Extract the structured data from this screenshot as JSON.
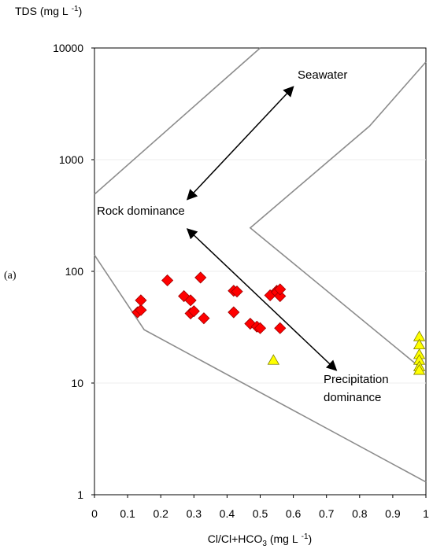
{
  "panel_label": "(a)",
  "chart_data": {
    "type": "scatter",
    "ylabel": "TDS (mg L -1)",
    "xlabel": "Cl/Cl+HCO3 (mg L -1)",
    "xlim": [
      0,
      1
    ],
    "ylim": [
      1,
      10000
    ],
    "y_scale": "log",
    "grid": true,
    "x_ticks": [
      "0",
      "0.1",
      "0.2",
      "0.3",
      "0.4",
      "0.5",
      "0.6",
      "0.7",
      "0.8",
      "0.9",
      "1"
    ],
    "y_ticks": [
      "1",
      "10",
      "100",
      "1000",
      "10000"
    ],
    "annotations": {
      "seawater": "Seawater",
      "rock": "Rock dominance",
      "precip_1": "Precipitation",
      "precip_2": "dominance"
    },
    "boundary_lines": [
      {
        "points": [
          [
            0,
            490
          ],
          [
            0.5,
            10000
          ]
        ]
      },
      {
        "points": [
          [
            0,
            140
          ],
          [
            0.15,
            30
          ],
          [
            1,
            1.3
          ]
        ]
      },
      {
        "points": [
          [
            1,
            7500
          ],
          [
            0.83,
            2000
          ],
          [
            0.47,
            245
          ],
          [
            0.98,
            14
          ]
        ]
      }
    ],
    "arrows": [
      {
        "from": [
          0.28,
          440
        ],
        "to": [
          0.6,
          4500
        ]
      },
      {
        "from": [
          0.28,
          240
        ],
        "to": [
          0.73,
          13
        ]
      }
    ],
    "series": [
      {
        "marker": "diamond",
        "color": "#ff0000",
        "points": [
          [
            0.13,
            43
          ],
          [
            0.14,
            45
          ],
          [
            0.14,
            55
          ],
          [
            0.22,
            83
          ],
          [
            0.27,
            60
          ],
          [
            0.29,
            55
          ],
          [
            0.29,
            42
          ],
          [
            0.3,
            44
          ],
          [
            0.32,
            88
          ],
          [
            0.33,
            38
          ],
          [
            0.42,
            43
          ],
          [
            0.42,
            67
          ],
          [
            0.43,
            66
          ],
          [
            0.47,
            34
          ],
          [
            0.49,
            32
          ],
          [
            0.5,
            31
          ],
          [
            0.53,
            61
          ],
          [
            0.55,
            67
          ],
          [
            0.55,
            65
          ],
          [
            0.56,
            60
          ],
          [
            0.56,
            69
          ],
          [
            0.56,
            31
          ]
        ]
      },
      {
        "marker": "triangle",
        "color": "#ffff00",
        "points": [
          [
            0.54,
            16
          ],
          [
            0.98,
            26
          ],
          [
            0.98,
            22
          ],
          [
            0.98,
            18
          ],
          [
            0.98,
            16
          ],
          [
            0.98,
            14
          ],
          [
            0.98,
            13
          ]
        ]
      }
    ]
  }
}
